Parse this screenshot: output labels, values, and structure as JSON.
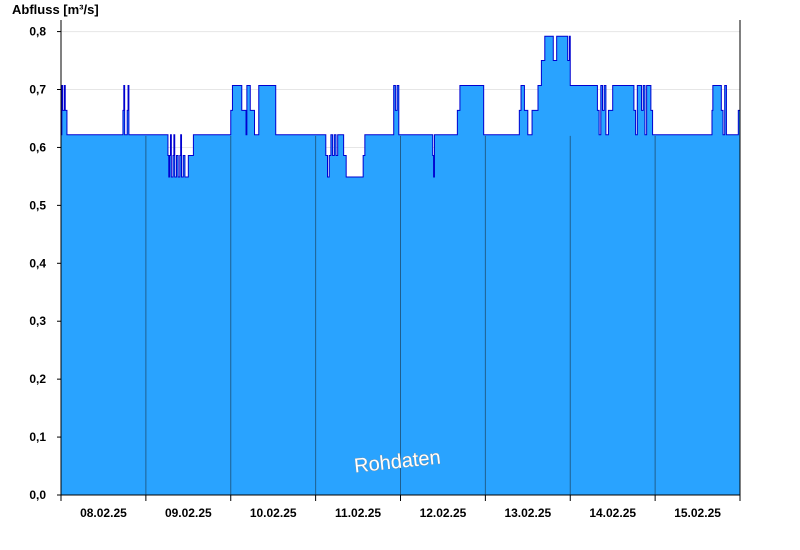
{
  "chart_data": {
    "type": "area",
    "ylabel": "Abfluss [m³/s]",
    "watermark": "Rohdaten",
    "ylim": [
      0,
      0.82
    ],
    "y_ticks": [
      "0,0",
      "0,1",
      "0,2",
      "0,3",
      "0,4",
      "0,5",
      "0,6",
      "0,7",
      "0,8"
    ],
    "y_tick_values": [
      0,
      0.1,
      0.2,
      0.3,
      0.4,
      0.5,
      0.6,
      0.7,
      0.8
    ],
    "x_categories": [
      "08.02.25",
      "09.02.25",
      "10.02.25",
      "11.02.25",
      "12.02.25",
      "13.02.25",
      "14.02.25",
      "15.02.25"
    ],
    "x_range_days": [
      0,
      8
    ],
    "grid": "horizontal",
    "colors": {
      "fill": "#29a3ff",
      "line": "#0000d0",
      "day_separator": "#1f5f8f",
      "grid": "#e6e6e6"
    },
    "series": [
      {
        "values": [
          [
            0.0,
            0.622
          ],
          [
            0.01,
            0.707
          ],
          [
            0.02,
            0.664
          ],
          [
            0.04,
            0.707
          ],
          [
            0.05,
            0.664
          ],
          [
            0.07,
            0.622
          ],
          [
            0.72,
            0.622
          ],
          [
            0.73,
            0.664
          ],
          [
            0.74,
            0.707
          ],
          [
            0.75,
            0.622
          ],
          [
            0.78,
            0.664
          ],
          [
            0.79,
            0.707
          ],
          [
            0.8,
            0.622
          ],
          [
            1.25,
            0.622
          ],
          [
            1.26,
            0.586
          ],
          [
            1.27,
            0.549
          ],
          [
            1.28,
            0.586
          ],
          [
            1.29,
            0.622
          ],
          [
            1.3,
            0.549
          ],
          [
            1.32,
            0.586
          ],
          [
            1.33,
            0.622
          ],
          [
            1.34,
            0.549
          ],
          [
            1.36,
            0.586
          ],
          [
            1.38,
            0.549
          ],
          [
            1.4,
            0.586
          ],
          [
            1.41,
            0.622
          ],
          [
            1.42,
            0.549
          ],
          [
            1.44,
            0.586
          ],
          [
            1.46,
            0.549
          ],
          [
            1.5,
            0.586
          ],
          [
            1.56,
            0.622
          ],
          [
            1.98,
            0.622
          ],
          [
            2.0,
            0.664
          ],
          [
            2.02,
            0.707
          ],
          [
            2.13,
            0.664
          ],
          [
            2.18,
            0.622
          ],
          [
            2.19,
            0.707
          ],
          [
            2.23,
            0.664
          ],
          [
            2.28,
            0.622
          ],
          [
            2.33,
            0.707
          ],
          [
            2.53,
            0.622
          ],
          [
            3.1,
            0.622
          ],
          [
            3.12,
            0.586
          ],
          [
            3.14,
            0.549
          ],
          [
            3.16,
            0.586
          ],
          [
            3.18,
            0.622
          ],
          [
            3.2,
            0.586
          ],
          [
            3.22,
            0.622
          ],
          [
            3.24,
            0.586
          ],
          [
            3.26,
            0.622
          ],
          [
            3.33,
            0.586
          ],
          [
            3.36,
            0.549
          ],
          [
            3.56,
            0.586
          ],
          [
            3.58,
            0.622
          ],
          [
            3.9,
            0.622
          ],
          [
            3.92,
            0.707
          ],
          [
            3.94,
            0.664
          ],
          [
            3.96,
            0.707
          ],
          [
            3.98,
            0.622
          ],
          [
            4.37,
            0.622
          ],
          [
            4.38,
            0.586
          ],
          [
            4.39,
            0.549
          ],
          [
            4.4,
            0.622
          ],
          [
            4.65,
            0.622
          ],
          [
            4.67,
            0.664
          ],
          [
            4.7,
            0.707
          ],
          [
            4.98,
            0.622
          ],
          [
            5.38,
            0.622
          ],
          [
            5.4,
            0.664
          ],
          [
            5.42,
            0.707
          ],
          [
            5.46,
            0.664
          ],
          [
            5.5,
            0.622
          ],
          [
            5.55,
            0.664
          ],
          [
            5.62,
            0.707
          ],
          [
            5.66,
            0.75
          ],
          [
            5.7,
            0.792
          ],
          [
            5.8,
            0.75
          ],
          [
            5.84,
            0.792
          ],
          [
            5.97,
            0.75
          ],
          [
            5.99,
            0.792
          ],
          [
            6.0,
            0.707
          ],
          [
            6.3,
            0.707
          ],
          [
            6.32,
            0.664
          ],
          [
            6.34,
            0.622
          ],
          [
            6.36,
            0.707
          ],
          [
            6.38,
            0.664
          ],
          [
            6.4,
            0.707
          ],
          [
            6.42,
            0.622
          ],
          [
            6.45,
            0.664
          ],
          [
            6.5,
            0.707
          ],
          [
            6.75,
            0.664
          ],
          [
            6.77,
            0.622
          ],
          [
            6.79,
            0.707
          ],
          [
            6.84,
            0.664
          ],
          [
            6.86,
            0.707
          ],
          [
            6.88,
            0.622
          ],
          [
            6.9,
            0.707
          ],
          [
            6.95,
            0.664
          ],
          [
            6.97,
            0.622
          ],
          [
            7.66,
            0.622
          ],
          [
            7.67,
            0.664
          ],
          [
            7.68,
            0.707
          ],
          [
            7.78,
            0.664
          ],
          [
            7.8,
            0.622
          ],
          [
            7.82,
            0.707
          ],
          [
            7.84,
            0.622
          ],
          [
            7.98,
            0.664
          ],
          [
            8.0,
            0.707
          ]
        ]
      }
    ]
  }
}
